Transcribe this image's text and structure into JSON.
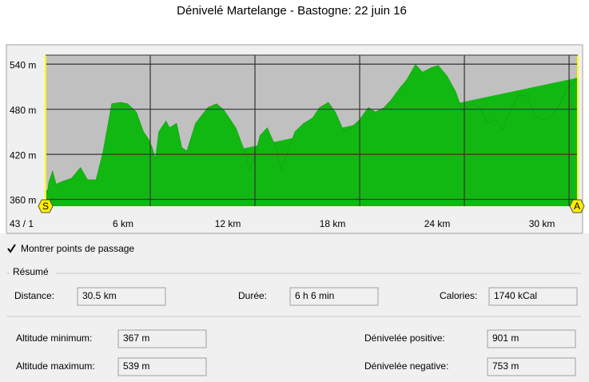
{
  "title": "Dénivelé Martelange - Bastogne: 22 juin 16",
  "chart_data": {
    "type": "area",
    "x": [
      0,
      0.1,
      0.2,
      0.4,
      0.6,
      1.0,
      1.5,
      2.0,
      2.4,
      2.9,
      3.3,
      3.8,
      4.3,
      4.7,
      5.2,
      5.6,
      5.9,
      6.1,
      6.3,
      6.5,
      6.9,
      7.1,
      7.5,
      7.8,
      8.1,
      8.6,
      9.3,
      9.8,
      10.2,
      10.9,
      11.4,
      11.7,
      12.0,
      12.3,
      12.7,
      13.2,
      13.5,
      13.9,
      14.3,
      14.8,
      15.3,
      15.7,
      16.2,
      16.6,
      17.1,
      17.5,
      18.0,
      18.5,
      18.9,
      19.4,
      19.8,
      20.3,
      20.7,
      21.2,
      21.6,
      22.1,
      22.5,
      23.0,
      23.5,
      23.9,
      24.4,
      24.9,
      25.3,
      25.8,
      26.2,
      26.7,
      27.1,
      27.6,
      28.0,
      28.5,
      28.9,
      29.5,
      29.9,
      30.5
    ],
    "series": [
      {
        "color": "#12b812",
        "values": [
          372,
          367,
          383,
          397,
          380,
          384,
          388,
          402,
          386,
          386,
          423,
          487,
          489,
          487,
          476,
          450,
          440,
          429,
          413,
          450,
          464,
          455,
          461,
          429,
          424,
          461,
          482,
          487,
          479,
          455,
          424,
          399,
          418,
          445,
          455,
          429,
          399,
          424,
          450,
          461,
          468,
          482,
          489,
          476,
          450,
          455,
          466,
          482,
          476,
          482,
          492,
          508,
          519,
          539,
          529,
          535,
          538,
          524,
          503,
          476,
          487,
          482,
          461,
          466,
          452,
          482,
          498,
          498,
          471,
          466,
          468,
          487,
          508,
          522
        ]
      }
    ],
    "xlim": [
      0,
      30.5
    ],
    "xticks": [
      {
        "value": 6,
        "label": "6 km"
      },
      {
        "value": 12,
        "label": "12 km"
      },
      {
        "value": 18,
        "label": "18 km"
      },
      {
        "value": 24,
        "label": "24 km"
      },
      {
        "value": 30,
        "label": "30 km"
      }
    ],
    "ylim": [
      351,
      552
    ],
    "yticks": [
      {
        "value": 360,
        "label": "360 m"
      },
      {
        "value": 420,
        "label": "420 m"
      },
      {
        "value": 480,
        "label": "480 m"
      },
      {
        "value": 540,
        "label": "540 m"
      }
    ],
    "grid": true
  },
  "status": "43 / 1",
  "markers": {
    "start": "S",
    "end": "A"
  },
  "checkbox": {
    "label": "Montrer points de passage",
    "checked": true
  },
  "summary": {
    "title": "Résumé",
    "fields": [
      {
        "label": "Distance:",
        "value": "30.5 km"
      },
      {
        "label": "Durée:",
        "value": "6 h 6 min"
      },
      {
        "label": "Calories:",
        "value": "1740 kCal"
      },
      {
        "label": "Altitude minimum:",
        "value": "367 m"
      },
      {
        "label": "Dénivelée positive:",
        "value": "901 m"
      },
      {
        "label": "Altitude maximum:",
        "value": "539 m"
      },
      {
        "label": "Dénivelée negative:",
        "value": "753 m"
      }
    ]
  }
}
